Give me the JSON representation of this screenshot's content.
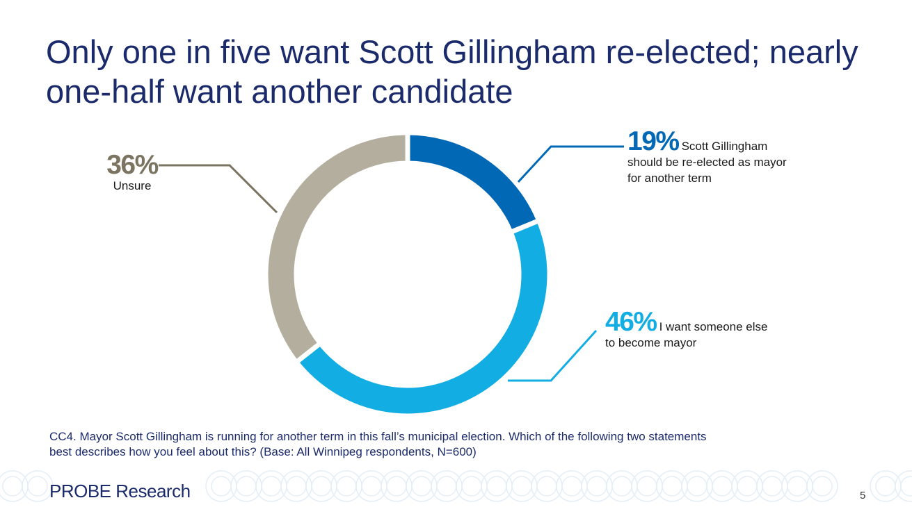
{
  "slide": {
    "title": "Only one in five want Scott Gillingham re-elected; nearly one-half want another candidate",
    "footnote": "CC4. Mayor Scott Gillingham is running for another term in this fall’s municipal election. Which of the following two statements best describes how you feel about this? (Base: All Winnipeg respondents, N=600)",
    "logo": "PROBE Research",
    "page_number": "5"
  },
  "chart_data": {
    "type": "pie",
    "donut": true,
    "title": "",
    "slices": [
      {
        "label": "Scott Gillingham should be re-elected as mayor for another term",
        "value": 19,
        "value_label": "19%",
        "color": "#0068b5"
      },
      {
        "label": "I want someone else to become mayor",
        "value": 46,
        "value_label": "46%",
        "color": "#12ade3"
      },
      {
        "label": "Unsure",
        "value": 36,
        "value_label": "36%",
        "color": "#b3ae9d"
      }
    ]
  }
}
